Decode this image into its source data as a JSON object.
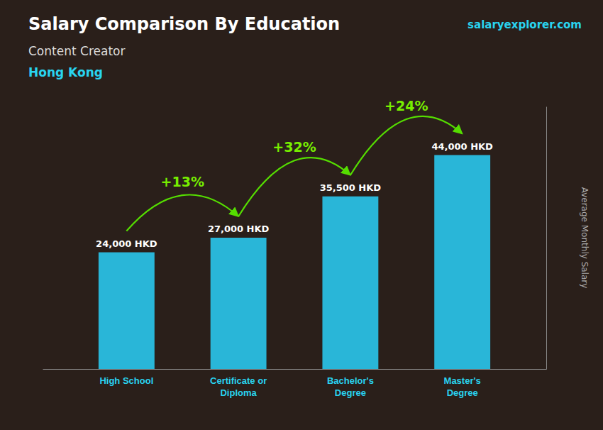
{
  "chart_data": {
    "type": "bar",
    "title": "Salary Comparison By Education",
    "subtitle": "Content Creator",
    "ylabel": "Average Monthly Salary",
    "categories": [
      "High School",
      "Certificate or\nDiploma",
      "Bachelor's\nDegree",
      "Master's\nDegree"
    ],
    "values": [
      24000,
      27000,
      35500,
      44000
    ],
    "value_labels": [
      "24,000 HKD",
      "27,000 HKD",
      "35,500 HKD",
      "44,000 HKD"
    ],
    "data_labels": true,
    "color": "#29b6d8",
    "ylim": [
      0,
      54000
    ],
    "yticks": [],
    "tick_labels": "x",
    "grid": false,
    "annotations": [
      "Hong Kong",
      "salaryexplorer.com",
      "+13%",
      "+32%",
      "+24%"
    ]
  }
}
